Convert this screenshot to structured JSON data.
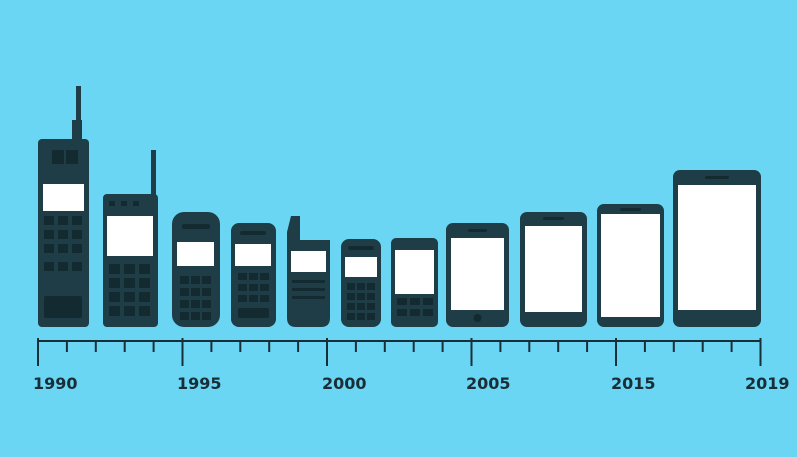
{
  "colors": {
    "background": "#6ad6f3",
    "phone_body": "#1e3d46",
    "phone_detail": "#142a31",
    "screen": "#ffffff",
    "axis": "#1a2e38"
  },
  "timeline": {
    "labels": [
      "1990",
      "1995",
      "2000",
      "2005",
      "2015",
      "2019"
    ]
  }
}
